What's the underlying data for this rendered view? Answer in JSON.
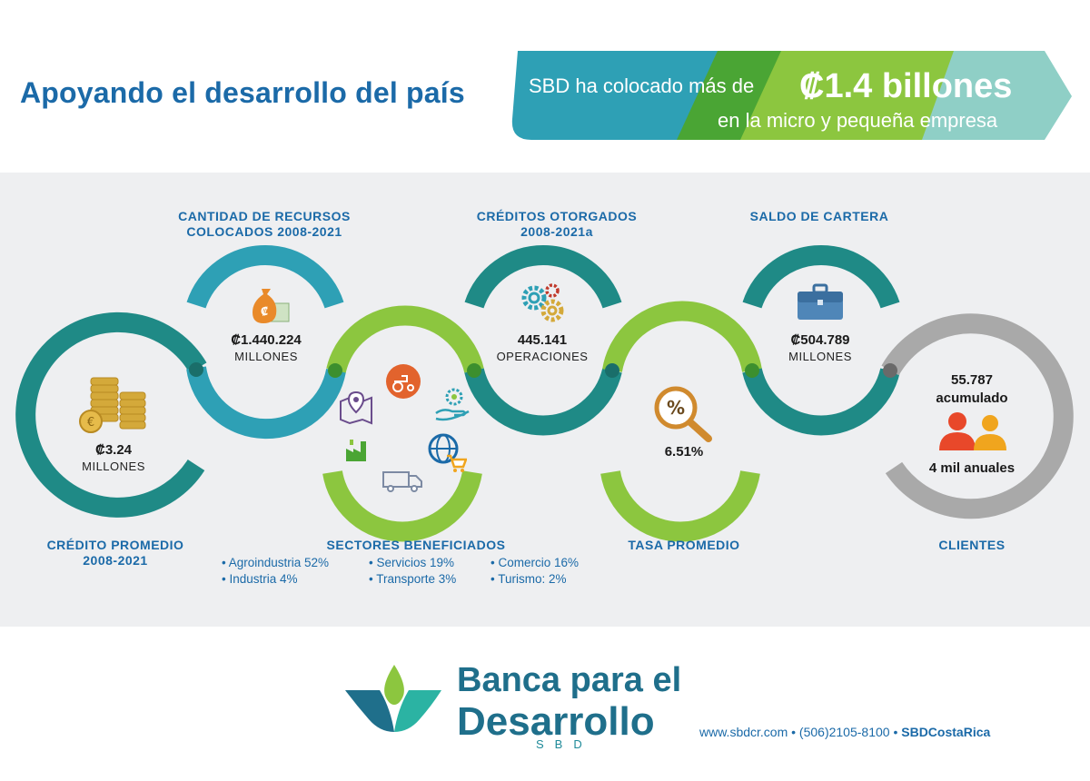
{
  "header": {
    "title": "Apoyando el desarrollo del país",
    "banner_text1": "SBD ha colocado más de",
    "banner_amount": "₡1.4 billones",
    "banner_text2": "en la micro y pequeña empresa"
  },
  "stats": {
    "credito_promedio": {
      "label_line1": "CRÉDITO PROMEDIO",
      "label_line2": "2008-2021",
      "value": "₡3.24",
      "unit": "MILLONES"
    },
    "recursos": {
      "label_line1": "CANTIDAD DE RECURSOS",
      "label_line2": "COLOCADOS 2008-2021",
      "value": "₡1.440.224",
      "unit": "MILLONES"
    },
    "sectores": {
      "label": "SECTORES BENEFICIADOS"
    },
    "creditos": {
      "label_line1": "CRÉDITOS OTORGADOS",
      "label_line2": "2008-2021a",
      "value": "445.141",
      "unit": "OPERACIONES"
    },
    "tasa": {
      "label": "TASA PROMEDIO",
      "value": "6.51%"
    },
    "saldo": {
      "label": "SALDO DE CARTERA",
      "value": "₡504.789",
      "unit": "MILLONES"
    },
    "clientes": {
      "label": "CLIENTES",
      "value_line1": "55.787",
      "value_line2": "acumulado",
      "value_line3": "4 mil anuales"
    }
  },
  "sectors_list": [
    "• Agroindustria 52%",
    "• Servicios 19%",
    "• Comercio 16%",
    "• Industria 4%",
    "• Transporte 3%",
    "• Turismo: 2%"
  ],
  "footer": {
    "logo_line1": "Banca para el",
    "logo_line2": "Desarrollo",
    "logo_line3": "SBD",
    "contact": "www.sbdcr.com • (506)2105-8100 • ",
    "contact_bold": "SBDCostaRica"
  },
  "colors": {
    "blue": "#1b6aa8",
    "teal_dark": "#1f8a86",
    "teal_light": "#2ea0b5",
    "green": "#8cc63f",
    "green_dark": "#4aa534",
    "grey": "#a9a9a9",
    "panel_bg": "#eeeff1"
  },
  "icons": [
    "coins-icon",
    "money-bag-icon",
    "gears-icon",
    "briefcase-icon",
    "percent-magnifier-icon",
    "people-icon",
    "map-pin-icon",
    "tractor-icon",
    "hand-gear-icon",
    "factory-icon",
    "globe-cart-icon",
    "truck-icon",
    "sbd-logo-icon"
  ]
}
